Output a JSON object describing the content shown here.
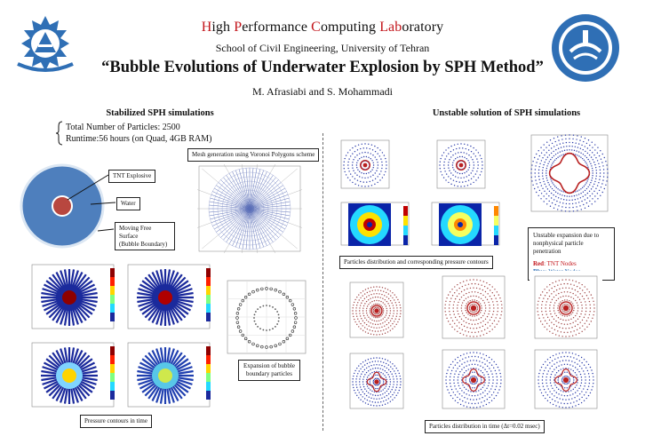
{
  "header": {
    "lab_parts": [
      {
        "cap": "H",
        "rest": "igh "
      },
      {
        "cap": "P",
        "rest": "erformance "
      },
      {
        "cap": "C",
        "rest": "omputing "
      },
      {
        "cap": "Lab",
        "rest": "oratory"
      }
    ],
    "school": "School of Civil Engineering, University of Tehran",
    "title": "“Bubble Evolutions of Underwater Explosion by SPH Method”",
    "authors": "M. Afrasiabi and S. Mohammadi"
  },
  "left": {
    "section_title": "Stabilized SPH simulations",
    "particles": "Total Number of Particles: 2500",
    "runtime": "Runtime:56 hours (on Quad, 4GB RAM)",
    "labels": {
      "tnt": "TNT Explosive",
      "water": "Water",
      "surface_line1": "Moving Free Surface",
      "surface_line2": "(Bubble Boundary)"
    },
    "mesh_caption": "Mesh generation using Voronoi Polygons scheme",
    "pressure_caption": "Pressure contours in time",
    "expansion_caption_line1": "Expansion of bubble",
    "expansion_caption_line2": "boundary particles"
  },
  "right": {
    "section_title": "Unstable solution of SPH simulations",
    "distribution_caption": "Particles distribution and corresponding pressure contours",
    "unstable_line1": "Unstable expansion due to",
    "unstable_line2": "nonphysical particle penetration",
    "red_key": "Red",
    "red_text": ": TNT Nodes",
    "blue_key": "Blue",
    "blue_text": ": Water Nodes",
    "time_caption": "Particles distribution in time (Δt=0.02 msec)"
  },
  "colors": {
    "accent_red": "#c3161c",
    "logo_blue": "#2f6fb5",
    "water_blue": "#4e7fbd",
    "tnt_red": "#b8473f"
  }
}
